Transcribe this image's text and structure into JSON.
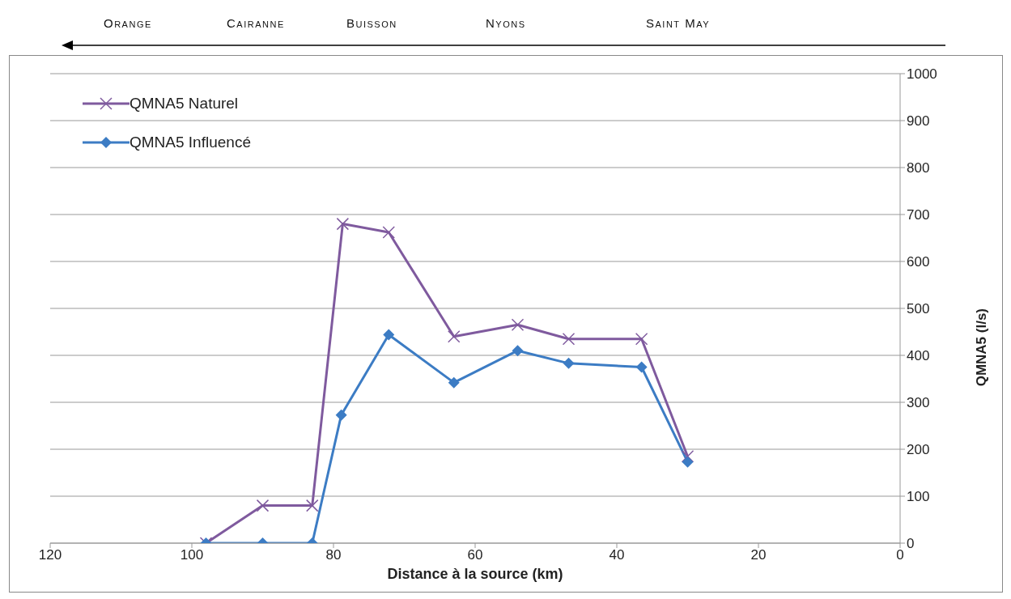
{
  "chart_data": {
    "type": "line",
    "xlabel": "Distance à la source (km)",
    "ylabel": "QMNA5  (l/s)",
    "annotations": [
      "Orange",
      "Cairanne",
      "Buisson",
      "Nyons",
      "Saint May"
    ],
    "series": [
      {
        "name": "QMNA5 Naturel",
        "color": "#7f5a9e",
        "marker": "cross",
        "x": [
          98,
          90,
          83,
          78.7,
          72.2,
          63,
          54,
          46.8,
          36.5,
          30
        ],
        "values": [
          0,
          80,
          80,
          680,
          662,
          440,
          465,
          435,
          435,
          185
        ]
      },
      {
        "name": "QMNA5 Influencé",
        "color": "#3c7cc4",
        "marker": "diamond",
        "x": [
          98,
          90,
          83,
          78.9,
          72.2,
          63,
          54,
          46.8,
          36.5,
          30
        ],
        "values": [
          0,
          0,
          0,
          273,
          444,
          342,
          410,
          383,
          375,
          173
        ]
      }
    ],
    "xlim": [
      120,
      0
    ],
    "xticks": [
      120,
      100,
      80,
      60,
      40,
      20,
      0
    ],
    "ylim": [
      0,
      1000
    ],
    "yticks": [
      0,
      100,
      200,
      300,
      400,
      500,
      600,
      700,
      800,
      900,
      1000
    ],
    "grid": "y",
    "legend": "top left",
    "line_style": "solid"
  }
}
